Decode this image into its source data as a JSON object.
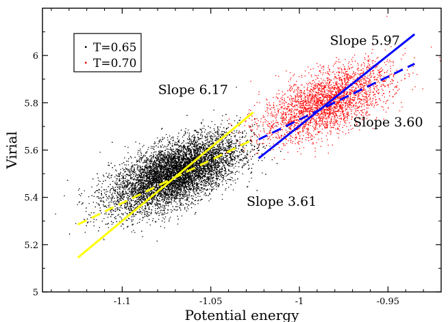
{
  "chart_data": {
    "type": "scatter",
    "title": "",
    "xlabel": "Potential energy",
    "ylabel": "Virial",
    "xlim": [
      -1.145,
      -0.92
    ],
    "ylim": [
      5.0,
      6.2
    ],
    "x_ticks": [
      -1.1,
      -1.05,
      -1,
      -0.95
    ],
    "x_tick_labels": [
      "-1.1",
      "-1.05",
      "-1",
      "-0.95"
    ],
    "y_ticks": [
      5.0,
      5.2,
      5.4,
      5.6,
      5.8,
      6.0
    ],
    "y_tick_labels": [
      "5",
      "5.2",
      "5.4",
      "5.6",
      "5.8",
      "6"
    ],
    "grid": false,
    "legend_position": "top-left",
    "series": [
      {
        "name": "T=0.65",
        "color": "#000000",
        "marker": "dot",
        "point_count": 9000,
        "center": [
          -1.07,
          5.5
        ],
        "std": [
          0.018,
          0.08
        ],
        "correlation": 0.6
      },
      {
        "name": "T=0.70",
        "color": "#ff0000",
        "marker": "dot",
        "point_count": 3000,
        "center": [
          -0.985,
          5.8
        ],
        "std": [
          0.018,
          0.08
        ],
        "correlation": 0.6
      }
    ],
    "fit_lines": [
      {
        "series": "T=0.65",
        "color": "#ffff00",
        "style": "solid",
        "slope": 6.17,
        "x": [
          -1.125,
          -1.026
        ],
        "y": [
          5.145,
          5.76
        ]
      },
      {
        "series": "T=0.65",
        "color": "#ffff00",
        "style": "dashed",
        "slope": 3.61,
        "x": [
          -1.125,
          -1.026
        ],
        "y": [
          5.285,
          5.645
        ]
      },
      {
        "series": "T=0.70",
        "color": "#0000ff",
        "style": "solid",
        "slope": 5.97,
        "x": [
          -1.023,
          -0.935
        ],
        "y": [
          5.565,
          6.09
        ]
      },
      {
        "series": "T=0.70",
        "color": "#0000ff",
        "style": "dashed",
        "slope": 3.6,
        "x": [
          -1.023,
          -0.935
        ],
        "y": [
          5.645,
          5.965
        ]
      }
    ],
    "annotations": [
      {
        "text": "Slope 6.17",
        "x": -1.06,
        "y": 5.837
      },
      {
        "text": "Slope 3.61",
        "x": -1.01,
        "y": 5.365
      },
      {
        "text": "Slope 5.97",
        "x": -0.963,
        "y": 6.045
      },
      {
        "text": "Slope 3.60",
        "x": -0.95,
        "y": 5.7
      }
    ]
  }
}
